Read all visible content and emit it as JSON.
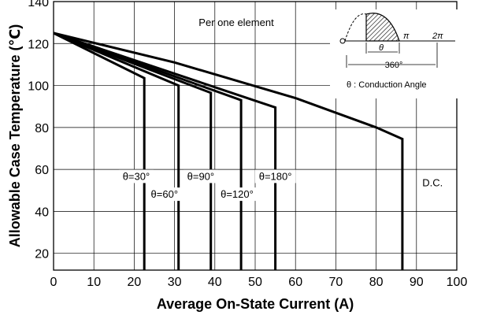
{
  "chart_data": {
    "type": "line",
    "xlabel": "Average On-State Current (A)",
    "ylabel": "Allowable Case Temperature (℃)",
    "xlim": [
      0,
      100
    ],
    "ylim": [
      12,
      140
    ],
    "xticks": [
      0,
      10,
      20,
      30,
      40,
      50,
      60,
      70,
      80,
      90,
      100
    ],
    "yticks": [
      20,
      40,
      60,
      80,
      100,
      120,
      140
    ],
    "grid": true,
    "annotation": "Per one element",
    "series": [
      {
        "name": "θ=30°",
        "points": [
          [
            0,
            125
          ],
          [
            22.5,
            103.5
          ],
          [
            22.5,
            12
          ]
        ]
      },
      {
        "name": "θ=60°",
        "points": [
          [
            0,
            125
          ],
          [
            31,
            100
          ],
          [
            31,
            12
          ]
        ]
      },
      {
        "name": "θ=90°",
        "points": [
          [
            0,
            125
          ],
          [
            39,
            96.5
          ],
          [
            39,
            12
          ]
        ]
      },
      {
        "name": "θ=120°",
        "points": [
          [
            0,
            125
          ],
          [
            46.5,
            93
          ],
          [
            46.5,
            12
          ]
        ]
      },
      {
        "name": "θ=180°",
        "points": [
          [
            0,
            125
          ],
          [
            55,
            89.5
          ],
          [
            55,
            12
          ]
        ]
      },
      {
        "name": "D.C.",
        "points": [
          [
            0,
            125
          ],
          [
            30,
            111
          ],
          [
            60,
            94
          ],
          [
            80,
            80
          ],
          [
            86.5,
            74.5
          ],
          [
            86.5,
            12
          ]
        ]
      }
    ],
    "series_labels": [
      {
        "text": "θ=30°",
        "x": 20.5,
        "y": 55
      },
      {
        "text": "θ=60°",
        "x": 27.5,
        "y": 46.5
      },
      {
        "text": "θ=90°",
        "x": 36.5,
        "y": 55
      },
      {
        "text": "θ=120°",
        "x": 45.5,
        "y": 46.5
      },
      {
        "text": "θ=180°",
        "x": 55,
        "y": 55
      },
      {
        "text": "D.C.",
        "x": 94,
        "y": 52
      }
    ],
    "inset": {
      "pi_label": "π",
      "two_pi_label": "2π",
      "theta_label": "θ",
      "deg_label": "360°",
      "caption": "θ : Conduction Angle"
    }
  }
}
